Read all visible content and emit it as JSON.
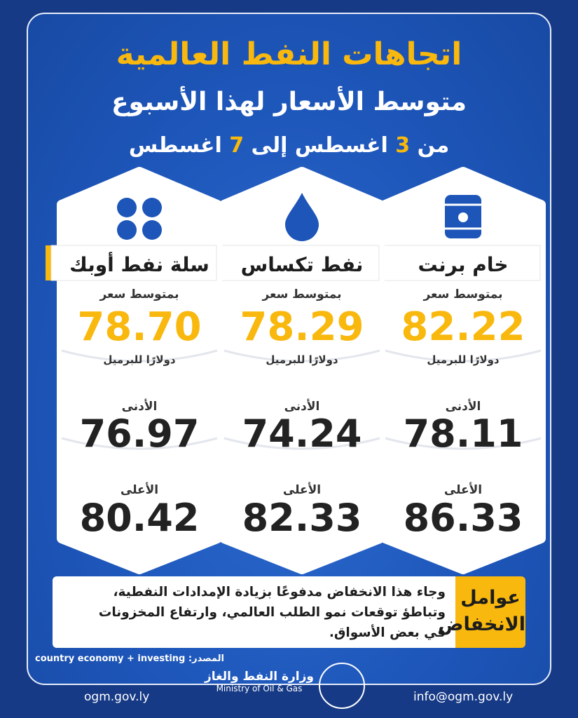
{
  "header": {
    "title": "اتجاهات النفط العالمية",
    "subtitle": "متوسط الأسعار لهذا الأسبوع",
    "date": {
      "prefix": "من",
      "from_day": "3",
      "middle": "اغسطس إلى",
      "to_day": "7",
      "suffix": "اغسطس"
    }
  },
  "cards": [
    {
      "name": "خام برنت",
      "avg_label": "بمتوسط سعر",
      "avg": "82.22",
      "unit": "دولارًا للبرميل",
      "low_label": "الأدنى",
      "low": "78.11",
      "high_label": "الأعلى",
      "high": "86.33"
    },
    {
      "name": "نفط تكساس",
      "avg_label": "بمتوسط سعر",
      "avg": "78.29",
      "unit": "دولارًا للبرميل",
      "low_label": "الأدنى",
      "low": "74.24",
      "high_label": "الأعلى",
      "high": "82.33"
    },
    {
      "name": "سلة نفط أوبك",
      "avg_label": "بمتوسط سعر",
      "avg": "78.70",
      "unit": "دولارًا للبرميل",
      "low_label": "الأدنى",
      "low": "76.97",
      "high_label": "الأعلى",
      "high": "80.42"
    }
  ],
  "factors": {
    "label": "عوامل الانخفاض",
    "lines": [
      "وجاء هذا الانخفاض مدفوعًا بزيادة الإمدادات النفطية،",
      "وتباطؤ توقعات نمو الطلب العالمي، وارتفاع المخزونات",
      "في بعض الأسواق."
    ]
  },
  "source": {
    "label": "المصدر:",
    "text": "country economy + investing"
  },
  "ministry": {
    "ar": "وزارة النفط والغاز",
    "en": "Ministry of Oil & Gas"
  },
  "footer": {
    "website": "ogm.gov.ly",
    "email": "info@ogm.gov.ly"
  }
}
